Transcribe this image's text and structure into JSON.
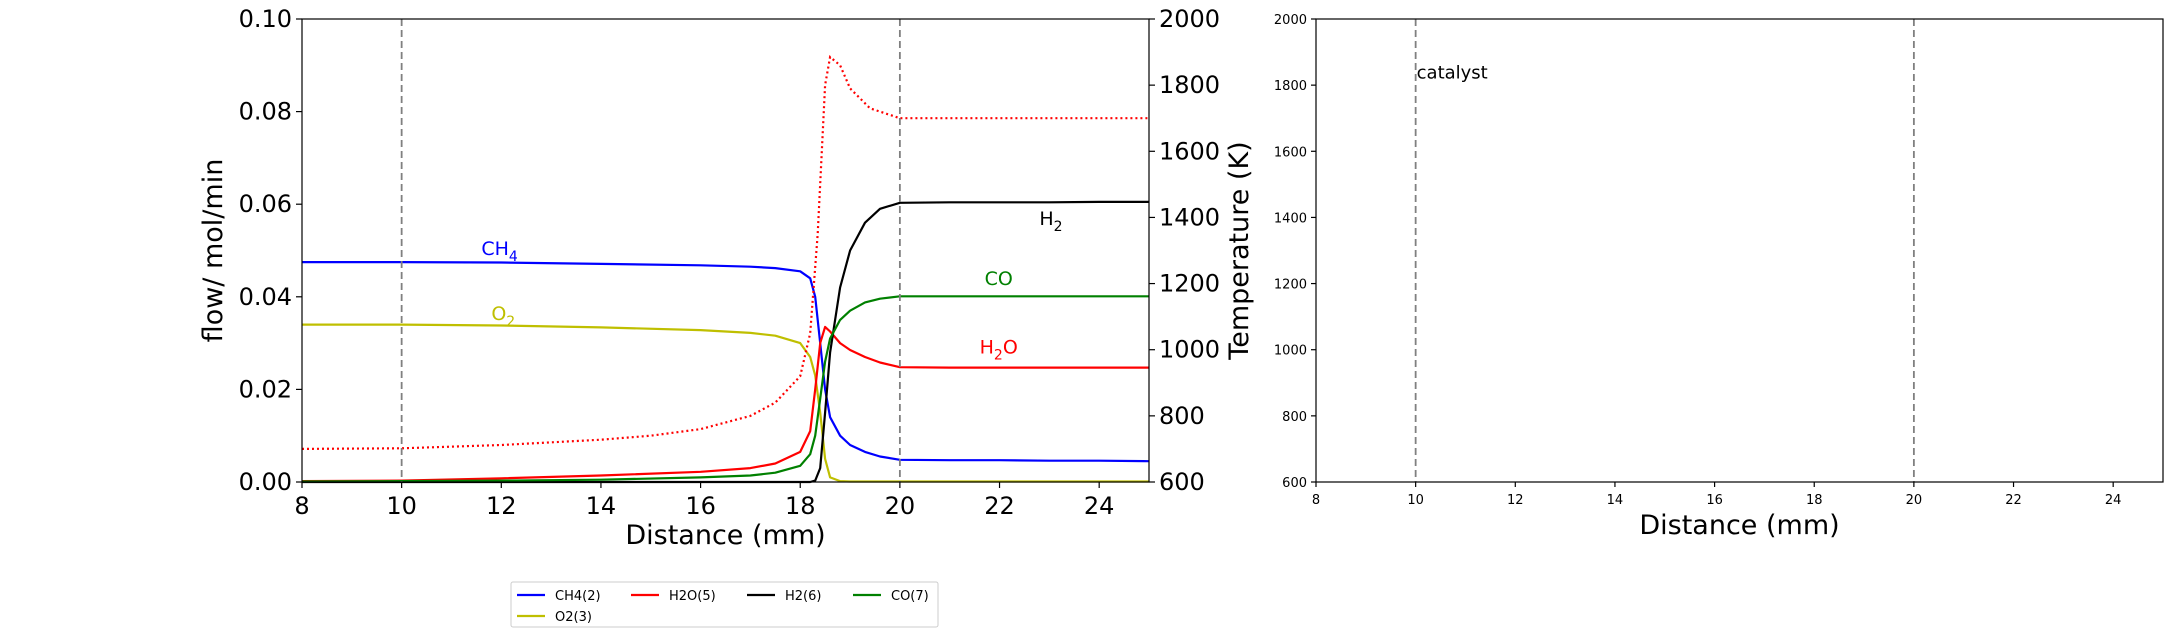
{
  "chart_data": [
    {
      "type": "line",
      "xlabel": "Distance (mm)",
      "ylabel": "flow/ mol/min",
      "y2label": "Temperature (K)",
      "xlim": [
        8,
        25
      ],
      "ylim": [
        0,
        0.1
      ],
      "y2lim": [
        600,
        2000
      ],
      "xticks": [
        "8",
        "10",
        "12",
        "14",
        "16",
        "18",
        "20",
        "22",
        "24"
      ],
      "yticks": [
        "0.00",
        "0.02",
        "0.04",
        "0.06",
        "0.08",
        "0.10"
      ],
      "y2ticks": [
        "600",
        "800",
        "1000",
        "1200",
        "1400",
        "1600",
        "1800",
        "2000"
      ],
      "vlines": [
        10,
        20
      ],
      "grid": false,
      "x": [
        8,
        10,
        12,
        14,
        16,
        17,
        17.5,
        18,
        18.2,
        18.3,
        18.4,
        18.5,
        18.6,
        18.8,
        19,
        19.3,
        19.6,
        20,
        21,
        22,
        23,
        24,
        25
      ],
      "series": [
        {
          "name": "CH4(2)",
          "color": "#0000ff",
          "values": [
            0.0475,
            0.0475,
            0.0474,
            0.0471,
            0.0468,
            0.0465,
            0.0462,
            0.0455,
            0.044,
            0.04,
            0.03,
            0.02,
            0.014,
            0.01,
            0.008,
            0.0065,
            0.0055,
            0.0048,
            0.0047,
            0.0047,
            0.0046,
            0.0046,
            0.0045
          ]
        },
        {
          "name": "O2(3)",
          "color": "#bfbf00",
          "values": [
            0.034,
            0.034,
            0.0338,
            0.0334,
            0.0328,
            0.0322,
            0.0316,
            0.03,
            0.027,
            0.023,
            0.015,
            0.005,
            0.001,
            0.0002,
            0.0001,
            0.0001,
            0.0001,
            0.0001,
            0.0001,
            0.0001,
            0.0001,
            0.0001,
            0.0001
          ]
        },
        {
          "name": "H2O(5)",
          "color": "#ff0000",
          "values": [
            0.0002,
            0.0003,
            0.0008,
            0.0014,
            0.0022,
            0.003,
            0.004,
            0.0065,
            0.011,
            0.02,
            0.03,
            0.0335,
            0.0325,
            0.03,
            0.0285,
            0.027,
            0.0258,
            0.0248,
            0.0247,
            0.0247,
            0.0247,
            0.0247,
            0.0247
          ]
        },
        {
          "name": "H2(6)",
          "color": "#000000",
          "values": [
            0,
            0,
            0,
            0,
            0,
            0,
            0,
            0,
            0,
            0.0003,
            0.003,
            0.015,
            0.028,
            0.042,
            0.05,
            0.056,
            0.059,
            0.0603,
            0.0604,
            0.0604,
            0.0604,
            0.0605,
            0.0605
          ]
        },
        {
          "name": "CO(7)",
          "color": "#008000",
          "values": [
            0.0001,
            0.0002,
            0.0003,
            0.0005,
            0.001,
            0.0014,
            0.002,
            0.0035,
            0.006,
            0.01,
            0.018,
            0.026,
            0.031,
            0.035,
            0.037,
            0.0388,
            0.0396,
            0.0401,
            0.0401,
            0.0401,
            0.0401,
            0.0401,
            0.0401
          ]
        }
      ],
      "temperature": {
        "color": "#ff0000",
        "style": "dotted",
        "x": [
          8,
          10,
          12,
          14,
          15,
          16,
          17,
          17.5,
          18,
          18.2,
          18.35,
          18.5,
          18.6,
          18.8,
          19,
          19.4,
          20,
          21,
          22,
          23,
          24,
          25
        ],
        "values": [
          700,
          702,
          712,
          728,
          740,
          760,
          800,
          840,
          920,
          1050,
          1350,
          1800,
          1885,
          1860,
          1790,
          1730,
          1700,
          1700,
          1700,
          1700,
          1700,
          1700
        ]
      },
      "annotations": [
        {
          "text": "CH",
          "sub": "4",
          "x": 11.6,
          "y": 0.049,
          "color": "#0000ff"
        },
        {
          "text": "O",
          "sub": "2",
          "x": 11.8,
          "y": 0.035,
          "color": "#bfbf00"
        },
        {
          "text": "H",
          "sub": "2",
          "x": 22.8,
          "y": 0.0555,
          "color": "#000000"
        },
        {
          "text": "CO",
          "x": 21.7,
          "y": 0.0425,
          "color": "#008000"
        },
        {
          "text": "H",
          "sub": "2",
          "suffix": "O",
          "x": 21.6,
          "y": 0.0278,
          "color": "#ff0000"
        }
      ],
      "legend": {
        "placement": "below",
        "entries": [
          {
            "label": "CH4(2)",
            "color": "#0000ff"
          },
          {
            "label": "H2O(5)",
            "color": "#ff0000"
          },
          {
            "label": "H2(6)",
            "color": "#000000"
          },
          {
            "label": "CO(7)",
            "color": "#008000"
          },
          {
            "label": "O2(3)",
            "color": "#bfbf00"
          }
        ]
      }
    },
    {
      "type": "line",
      "xlabel": "Distance (mm)",
      "xlim": [
        8,
        25
      ],
      "ylim": [
        600,
        2000
      ],
      "xticks": [
        "8",
        "10",
        "12",
        "14",
        "16",
        "18",
        "20",
        "22",
        "24"
      ],
      "yticks": [
        "600",
        "800",
        "1000",
        "1200",
        "1400",
        "1600",
        "1800",
        "2000"
      ],
      "vlines": [
        10,
        20
      ],
      "grid": false,
      "annotation": {
        "text": "catalyst",
        "x": 10,
        "y": 1820
      },
      "series": []
    }
  ]
}
